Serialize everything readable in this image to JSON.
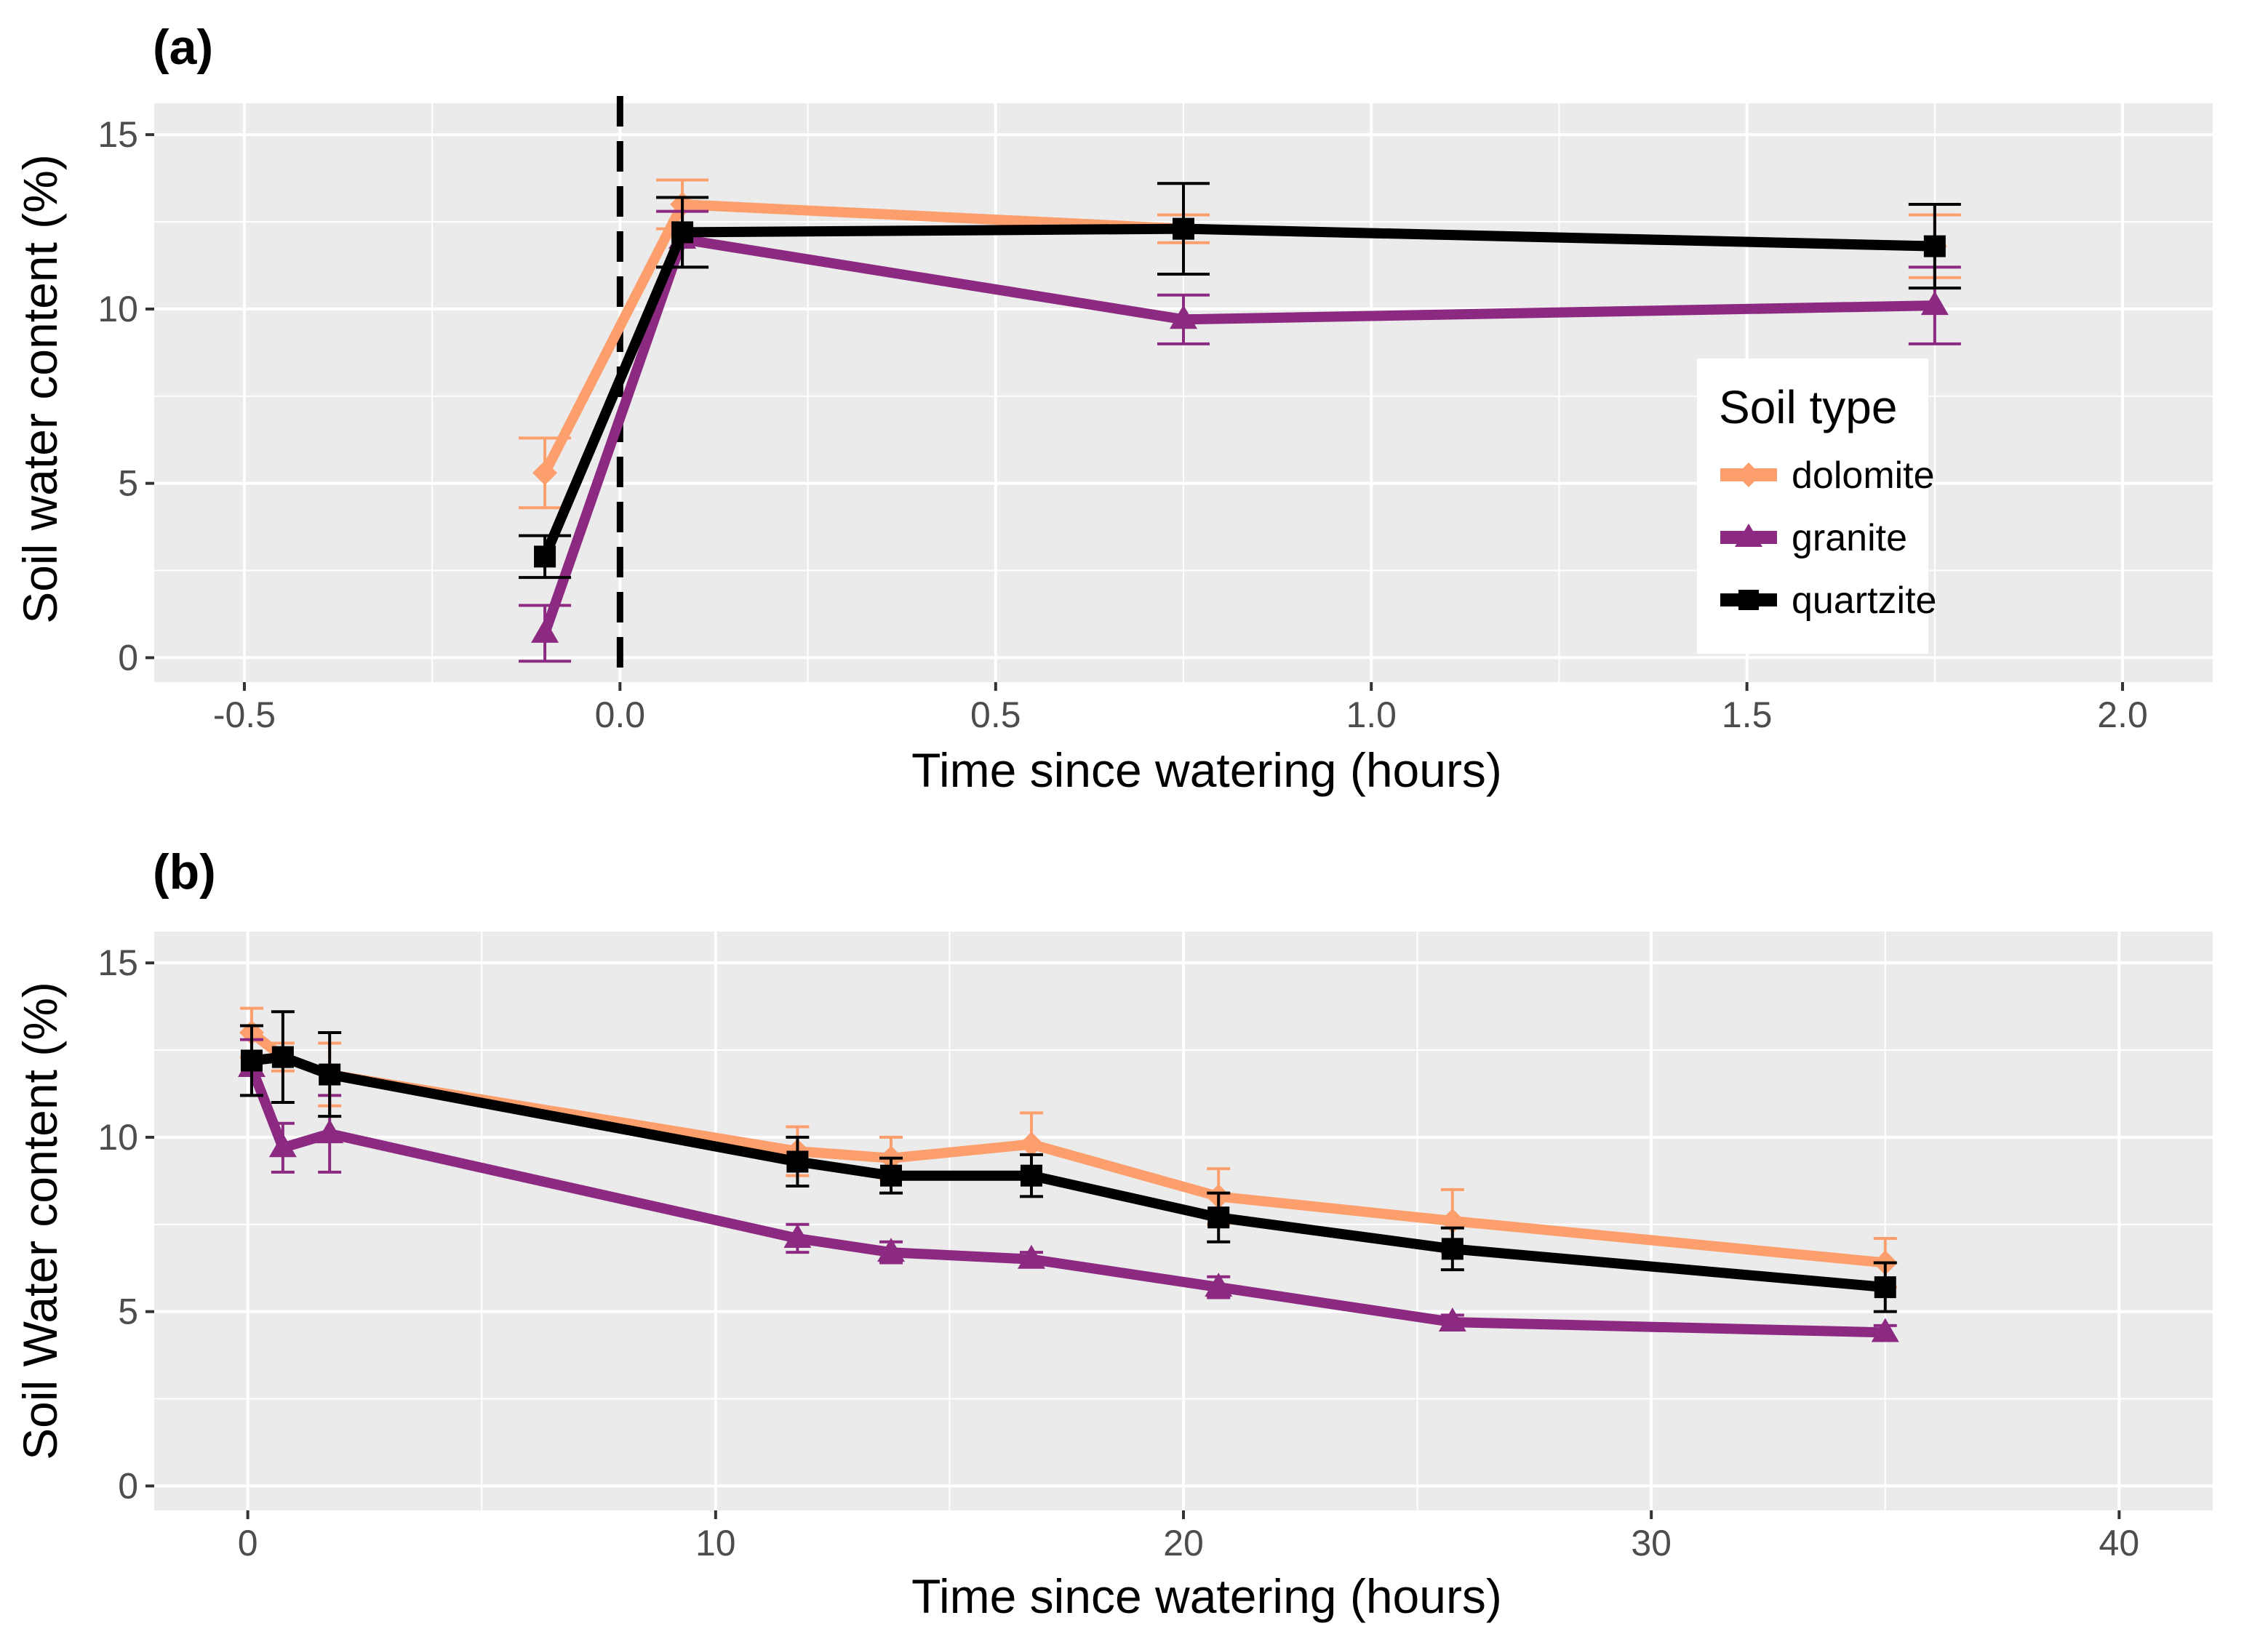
{
  "legend": {
    "title": "Soil type",
    "entries": [
      {
        "name": "dolomite",
        "color": "#FC9F6D",
        "marker": "diamond"
      },
      {
        "name": "granite",
        "color": "#8C2981",
        "marker": "triangle"
      },
      {
        "name": "quartzite",
        "color": "#000000",
        "marker": "square"
      }
    ]
  },
  "chart_data": [
    {
      "panel": "(a)",
      "type": "line",
      "xlabel": "Time since watering (hours)",
      "ylabel": "Soil water content (%)",
      "xlim": [
        -0.62,
        2.12
      ],
      "ylim": [
        -0.7,
        15.9
      ],
      "xticks": [
        -0.5,
        0.0,
        0.5,
        1.0,
        1.5,
        2.0
      ],
      "xtick_labels": [
        "-0.5",
        "0.0",
        "0.5",
        "1.0",
        "1.5",
        "2.0"
      ],
      "yticks": [
        0,
        5,
        10,
        15
      ],
      "ytick_labels": [
        "0",
        "5",
        "10",
        "15"
      ],
      "vline": 0.0,
      "series": [
        {
          "name": "dolomite",
          "color": "#FC9F6D",
          "x": [
            -0.1,
            0.083,
            0.75,
            1.75
          ],
          "y": [
            5.3,
            13.0,
            12.3,
            11.8
          ],
          "err": [
            1.0,
            0.7,
            0.4,
            0.9
          ]
        },
        {
          "name": "granite",
          "color": "#8C2981",
          "x": [
            -0.1,
            0.083,
            0.75,
            1.75
          ],
          "y": [
            0.7,
            12.0,
            9.7,
            10.1
          ],
          "err": [
            0.8,
            0.8,
            0.7,
            1.1
          ]
        },
        {
          "name": "quartzite",
          "color": "#000000",
          "x": [
            -0.1,
            0.083,
            0.75,
            1.75
          ],
          "y": [
            2.9,
            12.2,
            12.3,
            11.8
          ],
          "err": [
            0.6,
            1.0,
            1.3,
            1.2
          ]
        }
      ]
    },
    {
      "panel": "(b)",
      "type": "line",
      "xlabel": "Time since watering (hours)",
      "ylabel": "Soil Water content (%)",
      "xlim": [
        -2,
        42
      ],
      "ylim": [
        -0.7,
        15.9
      ],
      "xticks": [
        0,
        10,
        20,
        30,
        40
      ],
      "xtick_labels": [
        "0",
        "10",
        "20",
        "30",
        "40"
      ],
      "yticks": [
        0,
        5,
        10,
        15
      ],
      "ytick_labels": [
        "0",
        "5",
        "10",
        "15"
      ],
      "series": [
        {
          "name": "dolomite",
          "color": "#FC9F6D",
          "x": [
            0.083,
            0.75,
            1.75,
            11.75,
            13.75,
            16.75,
            20.75,
            25.75,
            35.0
          ],
          "y": [
            13.0,
            12.3,
            11.8,
            9.6,
            9.4,
            9.8,
            8.3,
            7.6,
            6.4
          ],
          "err": [
            0.7,
            0.4,
            0.9,
            0.7,
            0.6,
            0.9,
            0.8,
            0.9,
            0.7
          ]
        },
        {
          "name": "granite",
          "color": "#8C2981",
          "x": [
            0.083,
            0.75,
            1.75,
            11.75,
            13.75,
            16.75,
            20.75,
            25.75,
            35.0
          ],
          "y": [
            12.0,
            9.7,
            10.1,
            7.1,
            6.7,
            6.5,
            5.7,
            4.7,
            4.4
          ],
          "err": [
            0.8,
            0.7,
            1.1,
            0.4,
            0.3,
            0.2,
            0.3,
            0.2,
            0.2
          ]
        },
        {
          "name": "quartzite",
          "color": "#000000",
          "x": [
            0.083,
            0.75,
            1.75,
            11.75,
            13.75,
            16.75,
            20.75,
            25.75,
            35.0
          ],
          "y": [
            12.2,
            12.3,
            11.8,
            9.3,
            8.9,
            8.9,
            7.7,
            6.8,
            5.7
          ],
          "err": [
            1.0,
            1.3,
            1.2,
            0.7,
            0.5,
            0.6,
            0.7,
            0.6,
            0.7
          ]
        }
      ]
    }
  ]
}
